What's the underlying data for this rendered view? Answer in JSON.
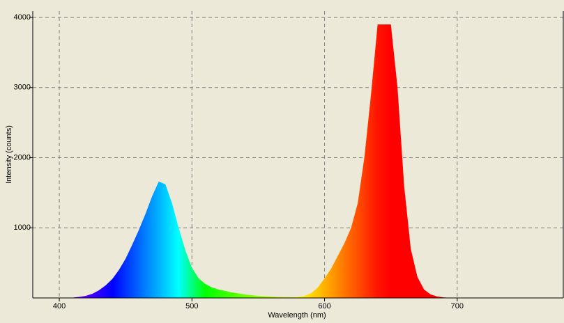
{
  "chart_data": {
    "type": "area",
    "x_label": "Wavelength (nm)",
    "y_label": "Intensity (counts)",
    "xlim": [
      380,
      780
    ],
    "ylim": [
      0,
      4090
    ],
    "xticks": [
      400,
      500,
      600,
      700
    ],
    "yticks": [
      1000,
      2000,
      3000,
      4000
    ],
    "grid": true,
    "x": [
      400,
      405,
      410,
      415,
      420,
      425,
      430,
      435,
      440,
      445,
      450,
      455,
      460,
      465,
      470,
      475,
      480,
      485,
      490,
      495,
      500,
      505,
      510,
      515,
      520,
      525,
      530,
      535,
      540,
      545,
      550,
      555,
      560,
      565,
      570,
      575,
      580,
      585,
      590,
      595,
      600,
      605,
      610,
      615,
      620,
      625,
      630,
      635,
      640,
      645,
      650,
      655,
      660,
      665,
      670,
      675,
      680,
      685,
      690,
      695,
      700,
      705,
      710
    ],
    "values": [
      0,
      0,
      5,
      15,
      30,
      60,
      110,
      180,
      270,
      400,
      560,
      760,
      970,
      1200,
      1450,
      1660,
      1620,
      1350,
      1000,
      680,
      430,
      280,
      200,
      150,
      120,
      100,
      80,
      65,
      50,
      40,
      30,
      25,
      20,
      15,
      12,
      10,
      15,
      30,
      70,
      150,
      280,
      420,
      600,
      780,
      1000,
      1350,
      2000,
      2900,
      3900,
      3900,
      3900,
      3000,
      1600,
      700,
      300,
      120,
      50,
      20,
      8,
      3,
      0,
      0,
      0
    ]
  }
}
